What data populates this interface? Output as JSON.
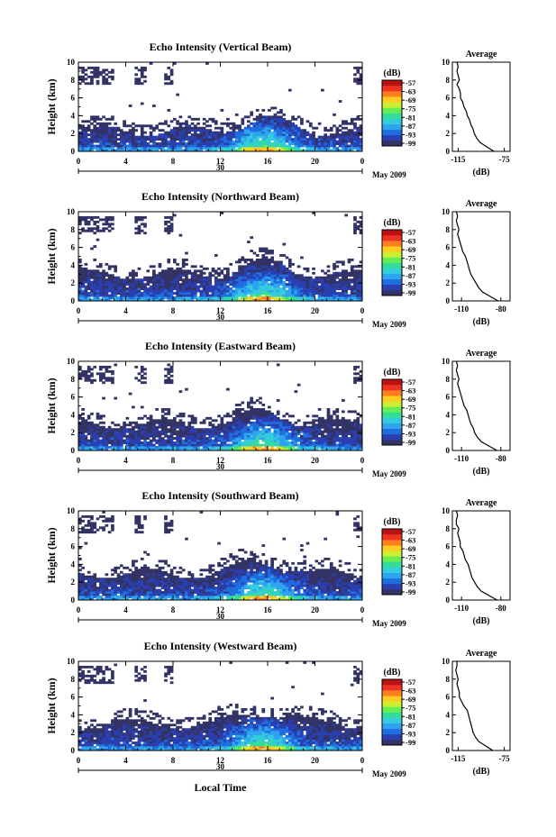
{
  "figure": {
    "colors": {
      "scale": [
        "#333366",
        "#2a3fb0",
        "#1f6ee0",
        "#2ea4ee",
        "#33ccdd",
        "#33dd99",
        "#66ee55",
        "#ccee33",
        "#ffcc22",
        "#ff7f1f",
        "#ee3322",
        "#bb1111"
      ],
      "background": "#ffffff"
    }
  },
  "panels": [
    {
      "title": "Echo Intensity (Vertical Beam)",
      "ylabel": "Height (km)",
      "cb_label": "(dB)",
      "cb_ticks": [
        "-57",
        "-63",
        "-69",
        "-75",
        "-81",
        "-87",
        "-93",
        "-99"
      ],
      "x_ticks": [
        "0",
        "4",
        "8",
        "12",
        "16",
        "20",
        "0"
      ],
      "y_ticks": [
        "0",
        "2",
        "4",
        "6",
        "8",
        "10"
      ],
      "day": "30",
      "month": "May 2009",
      "avg_title": "Average",
      "avg_xticks": [
        "-115",
        "-75"
      ],
      "avg_xlabel": "(dB)",
      "avg_yticks": [
        "0",
        "2",
        "4",
        "6",
        "8",
        "10"
      ]
    },
    {
      "title": "Echo Intensity (Northward Beam)",
      "ylabel": "Height (km)",
      "cb_label": "(dB)",
      "cb_ticks": [
        "-57",
        "-63",
        "-69",
        "-75",
        "-81",
        "-87",
        "-93",
        "-99"
      ],
      "x_ticks": [
        "0",
        "4",
        "8",
        "12",
        "16",
        "20",
        "0"
      ],
      "y_ticks": [
        "0",
        "2",
        "4",
        "6",
        "8",
        "10"
      ],
      "day": "30",
      "month": "May 2009",
      "avg_title": "Average",
      "avg_xticks": [
        "-110",
        "-80"
      ],
      "avg_xlabel": "(dB)",
      "avg_yticks": [
        "0",
        "2",
        "4",
        "6",
        "8",
        "10"
      ]
    },
    {
      "title": "Echo Intensity (Eastward Beam)",
      "ylabel": "Height (km)",
      "cb_label": "(dB)",
      "cb_ticks": [
        "-57",
        "-63",
        "-69",
        "-75",
        "-81",
        "-87",
        "-93",
        "-99"
      ],
      "x_ticks": [
        "0",
        "4",
        "8",
        "12",
        "16",
        "20",
        "0"
      ],
      "y_ticks": [
        "0",
        "2",
        "4",
        "6",
        "8",
        "10"
      ],
      "day": "30",
      "month": "May 2009",
      "avg_title": "Average",
      "avg_xticks": [
        "-110",
        "-80"
      ],
      "avg_xlabel": "(dB)",
      "avg_yticks": [
        "0",
        "2",
        "4",
        "6",
        "8",
        "10"
      ]
    },
    {
      "title": "Echo Intensity (Southward Beam)",
      "ylabel": "Height (km)",
      "cb_label": "(dB)",
      "cb_ticks": [
        "-57",
        "-63",
        "-69",
        "-75",
        "-81",
        "-87",
        "-93",
        "-99"
      ],
      "x_ticks": [
        "0",
        "4",
        "8",
        "12",
        "16",
        "20",
        "0"
      ],
      "y_ticks": [
        "0",
        "2",
        "4",
        "6",
        "8",
        "10"
      ],
      "day": "30",
      "month": "May 2009",
      "avg_title": "Average",
      "avg_xticks": [
        "-110",
        "-80"
      ],
      "avg_xlabel": "(dB)",
      "avg_yticks": [
        "0",
        "2",
        "4",
        "6",
        "8",
        "10"
      ]
    },
    {
      "title": "Echo Intensity (Westward Beam)",
      "ylabel": "Height (km)",
      "cb_label": "(dB)",
      "cb_ticks": [
        "-57",
        "-63",
        "-69",
        "-75",
        "-81",
        "-87",
        "-93",
        "-99"
      ],
      "x_ticks": [
        "0",
        "4",
        "8",
        "12",
        "16",
        "20",
        "0"
      ],
      "y_ticks": [
        "0",
        "2",
        "4",
        "6",
        "8",
        "10"
      ],
      "day": "30",
      "month": "May 2009",
      "avg_title": "Average",
      "avg_xticks": [
        "-115",
        "-75"
      ],
      "avg_xlabel": "(dB)",
      "avg_yticks": [
        "0",
        "2",
        "4",
        "6",
        "8",
        "10"
      ]
    }
  ],
  "xlabel_bottom": "Local Time",
  "chart_data": [
    {
      "type": "heatmap",
      "title": "Echo Intensity (Vertical Beam)",
      "xlabel": "",
      "ylabel": "Height (km)",
      "xlim": [
        0,
        24
      ],
      "ylim": [
        0,
        10
      ],
      "colorbar": {
        "label": "(dB)",
        "range": [
          -99,
          -57
        ]
      },
      "average_profile": {
        "type": "line",
        "title": "Average",
        "xlabel": "(dB)",
        "xlim": [
          -120,
          -70
        ],
        "height_km": [
          0,
          0.5,
          1,
          1.5,
          2,
          2.5,
          3,
          3.5,
          4,
          4.5,
          5,
          5.5,
          6,
          6.5,
          7,
          7.5,
          8,
          8.5,
          9,
          9.5,
          10
        ],
        "values": [
          -84,
          -90,
          -96,
          -99,
          -101,
          -102,
          -104,
          -105,
          -107,
          -108,
          -110,
          -111,
          -113,
          -113,
          -114,
          -116,
          -114,
          -115,
          -116,
          -115,
          -116
        ]
      }
    },
    {
      "type": "heatmap",
      "title": "Echo Intensity (Northward Beam)",
      "xlabel": "",
      "ylabel": "Height (km)",
      "xlim": [
        0,
        24
      ],
      "ylim": [
        0,
        10
      ],
      "colorbar": {
        "label": "(dB)",
        "range": [
          -99,
          -57
        ]
      },
      "average_profile": {
        "type": "line",
        "title": "Average",
        "xlabel": "(dB)",
        "xlim": [
          -117,
          -73
        ],
        "height_km": [
          0,
          0.5,
          1,
          1.5,
          2,
          2.5,
          3,
          3.5,
          4,
          4.5,
          5,
          5.5,
          6,
          6.5,
          7,
          7.5,
          8,
          8.5,
          9,
          9.5,
          10
        ],
        "values": [
          -82,
          -88,
          -94,
          -97,
          -99,
          -101,
          -103,
          -104,
          -105,
          -106,
          -107,
          -109,
          -110,
          -111,
          -112,
          -113,
          -112,
          -113,
          -114,
          -113,
          -114
        ]
      }
    },
    {
      "type": "heatmap",
      "title": "Echo Intensity (Eastward Beam)",
      "xlabel": "",
      "ylabel": "Height (km)",
      "xlim": [
        0,
        24
      ],
      "ylim": [
        0,
        10
      ],
      "colorbar": {
        "label": "(dB)",
        "range": [
          -99,
          -57
        ]
      },
      "average_profile": {
        "type": "line",
        "title": "Average",
        "xlabel": "(dB)",
        "xlim": [
          -117,
          -73
        ],
        "height_km": [
          0,
          0.5,
          1,
          1.5,
          2,
          2.5,
          3,
          3.5,
          4,
          4.5,
          5,
          5.5,
          6,
          6.5,
          7,
          7.5,
          8,
          8.5,
          9,
          9.5,
          10
        ],
        "values": [
          -83,
          -89,
          -95,
          -98,
          -100,
          -101,
          -103,
          -104,
          -105,
          -106,
          -108,
          -109,
          -110,
          -111,
          -112,
          -113,
          -112,
          -113,
          -114,
          -113,
          -114
        ]
      }
    },
    {
      "type": "heatmap",
      "title": "Echo Intensity (Southward Beam)",
      "xlabel": "",
      "ylabel": "Height (km)",
      "xlim": [
        0,
        24
      ],
      "ylim": [
        0,
        10
      ],
      "colorbar": {
        "label": "(dB)",
        "range": [
          -99,
          -57
        ]
      },
      "average_profile": {
        "type": "line",
        "title": "Average",
        "xlabel": "(dB)",
        "xlim": [
          -117,
          -73
        ],
        "height_km": [
          0,
          0.5,
          1,
          1.5,
          2,
          2.5,
          3,
          3.5,
          4,
          4.5,
          5,
          5.5,
          6,
          6.5,
          7,
          7.5,
          8,
          8.5,
          9,
          9.5,
          10
        ],
        "values": [
          -83,
          -89,
          -95,
          -98,
          -100,
          -102,
          -103,
          -104,
          -105,
          -107,
          -108,
          -109,
          -111,
          -111,
          -112,
          -113,
          -112,
          -114,
          -114,
          -113,
          -114
        ]
      }
    },
    {
      "type": "heatmap",
      "title": "Echo Intensity (Westward Beam)",
      "xlabel": "Local Time",
      "ylabel": "Height (km)",
      "xlim": [
        0,
        24
      ],
      "ylim": [
        0,
        10
      ],
      "colorbar": {
        "label": "(dB)",
        "range": [
          -99,
          -57
        ]
      },
      "average_profile": {
        "type": "line",
        "title": "Average",
        "xlabel": "(dB)",
        "xlim": [
          -120,
          -70
        ],
        "height_km": [
          0,
          0.5,
          1,
          1.5,
          2,
          2.5,
          3,
          3.5,
          4,
          4.5,
          5,
          5.5,
          6,
          6.5,
          7,
          7.5,
          8,
          8.5,
          9,
          9.5,
          10
        ],
        "values": [
          -85,
          -91,
          -97,
          -100,
          -102,
          -103,
          -104,
          -105,
          -106,
          -107,
          -110,
          -112,
          -114,
          -114,
          -115,
          -116,
          -115,
          -116,
          -117,
          -116,
          -116
        ]
      }
    }
  ]
}
